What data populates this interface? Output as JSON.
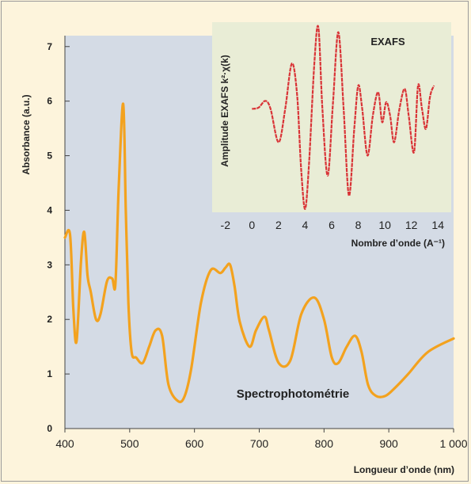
{
  "chart_data": [
    {
      "type": "line",
      "title": "",
      "annotation": "Spectrophotométrie",
      "xlabel": "Longueur d’onde (nm)",
      "ylabel": "Absorbance (a.u.)",
      "xlim": [
        400,
        1000
      ],
      "ylim": [
        0,
        7.2
      ],
      "xticks": [
        400,
        500,
        600,
        700,
        800,
        900,
        1000
      ],
      "xtick_labels": [
        "400",
        "500",
        "600",
        "700",
        "800",
        "900",
        "1 000"
      ],
      "yticks": [
        0,
        1,
        2,
        3,
        4,
        5,
        6,
        7
      ],
      "grid": false,
      "colors": {
        "background": "#d4dbe5",
        "line": "#f3a21e",
        "page": "#fdf4dc"
      },
      "x": [
        400,
        408,
        413,
        418,
        425,
        430,
        435,
        440,
        448,
        455,
        465,
        473,
        478,
        483,
        490,
        494,
        498,
        503,
        510,
        520,
        530,
        540,
        550,
        560,
        575,
        585,
        595,
        610,
        625,
        640,
        648,
        655,
        662,
        670,
        685,
        695,
        708,
        715,
        730,
        748,
        765,
        785,
        800,
        812,
        822,
        835,
        848,
        858,
        868,
        880,
        895,
        910,
        930,
        960,
        1000
      ],
      "y": [
        3.5,
        3.55,
        2.2,
        1.6,
        3.1,
        3.6,
        2.8,
        2.5,
        2.0,
        2.1,
        2.7,
        2.75,
        2.65,
        4.4,
        5.95,
        4.0,
        2.3,
        1.4,
        1.3,
        1.2,
        1.5,
        1.8,
        1.7,
        0.8,
        0.5,
        0.6,
        1.1,
        2.3,
        2.9,
        2.85,
        2.95,
        3.0,
        2.6,
        1.95,
        1.5,
        1.8,
        2.05,
        1.8,
        1.2,
        1.25,
        2.1,
        2.4,
        2.0,
        1.3,
        1.2,
        1.5,
        1.7,
        1.4,
        0.8,
        0.6,
        0.6,
        0.75,
        1.0,
        1.4,
        1.65
      ]
    },
    {
      "type": "line",
      "title": "EXAFS",
      "xlabel": "Nombre d’onde (A⁻¹)",
      "ylabel": "Amplitude EXAFS k²·χ(k)",
      "xlim": [
        -3,
        15
      ],
      "ylim": [
        -1.45,
        1.4
      ],
      "xticks": [
        -2,
        0,
        2,
        4,
        6,
        8,
        10,
        12,
        14
      ],
      "xtick_labels": [
        "-2",
        "0",
        "2",
        "4",
        "6",
        "8",
        "10",
        "12",
        "14"
      ],
      "grid": false,
      "colors": {
        "background": "#e9edd6",
        "line": "#d93437"
      },
      "x": [
        0,
        0.5,
        1.0,
        1.4,
        2.0,
        2.5,
        3.0,
        3.4,
        3.7,
        4.0,
        4.3,
        4.7,
        5.0,
        5.3,
        5.7,
        6.1,
        6.5,
        6.9,
        7.3,
        7.7,
        8.0,
        8.3,
        8.7,
        9.1,
        9.5,
        9.8,
        10.1,
        10.4,
        10.7,
        11.1,
        11.5,
        11.8,
        12.2,
        12.5,
        12.8,
        13.1,
        13.4,
        13.7
      ],
      "y": [
        0.1,
        0.12,
        0.22,
        0.1,
        -0.4,
        0.1,
        0.78,
        0.3,
        -0.8,
        -1.4,
        -0.7,
        0.8,
        1.32,
        0.1,
        -0.9,
        0.2,
        1.25,
        0.1,
        -1.2,
        -0.2,
        0.45,
        0.1,
        -0.6,
        0.0,
        0.35,
        -0.1,
        0.2,
        0.0,
        -0.4,
        0.1,
        0.4,
        0.0,
        -0.55,
        0.45,
        0.1,
        -0.2,
        0.28,
        0.45
      ]
    }
  ]
}
